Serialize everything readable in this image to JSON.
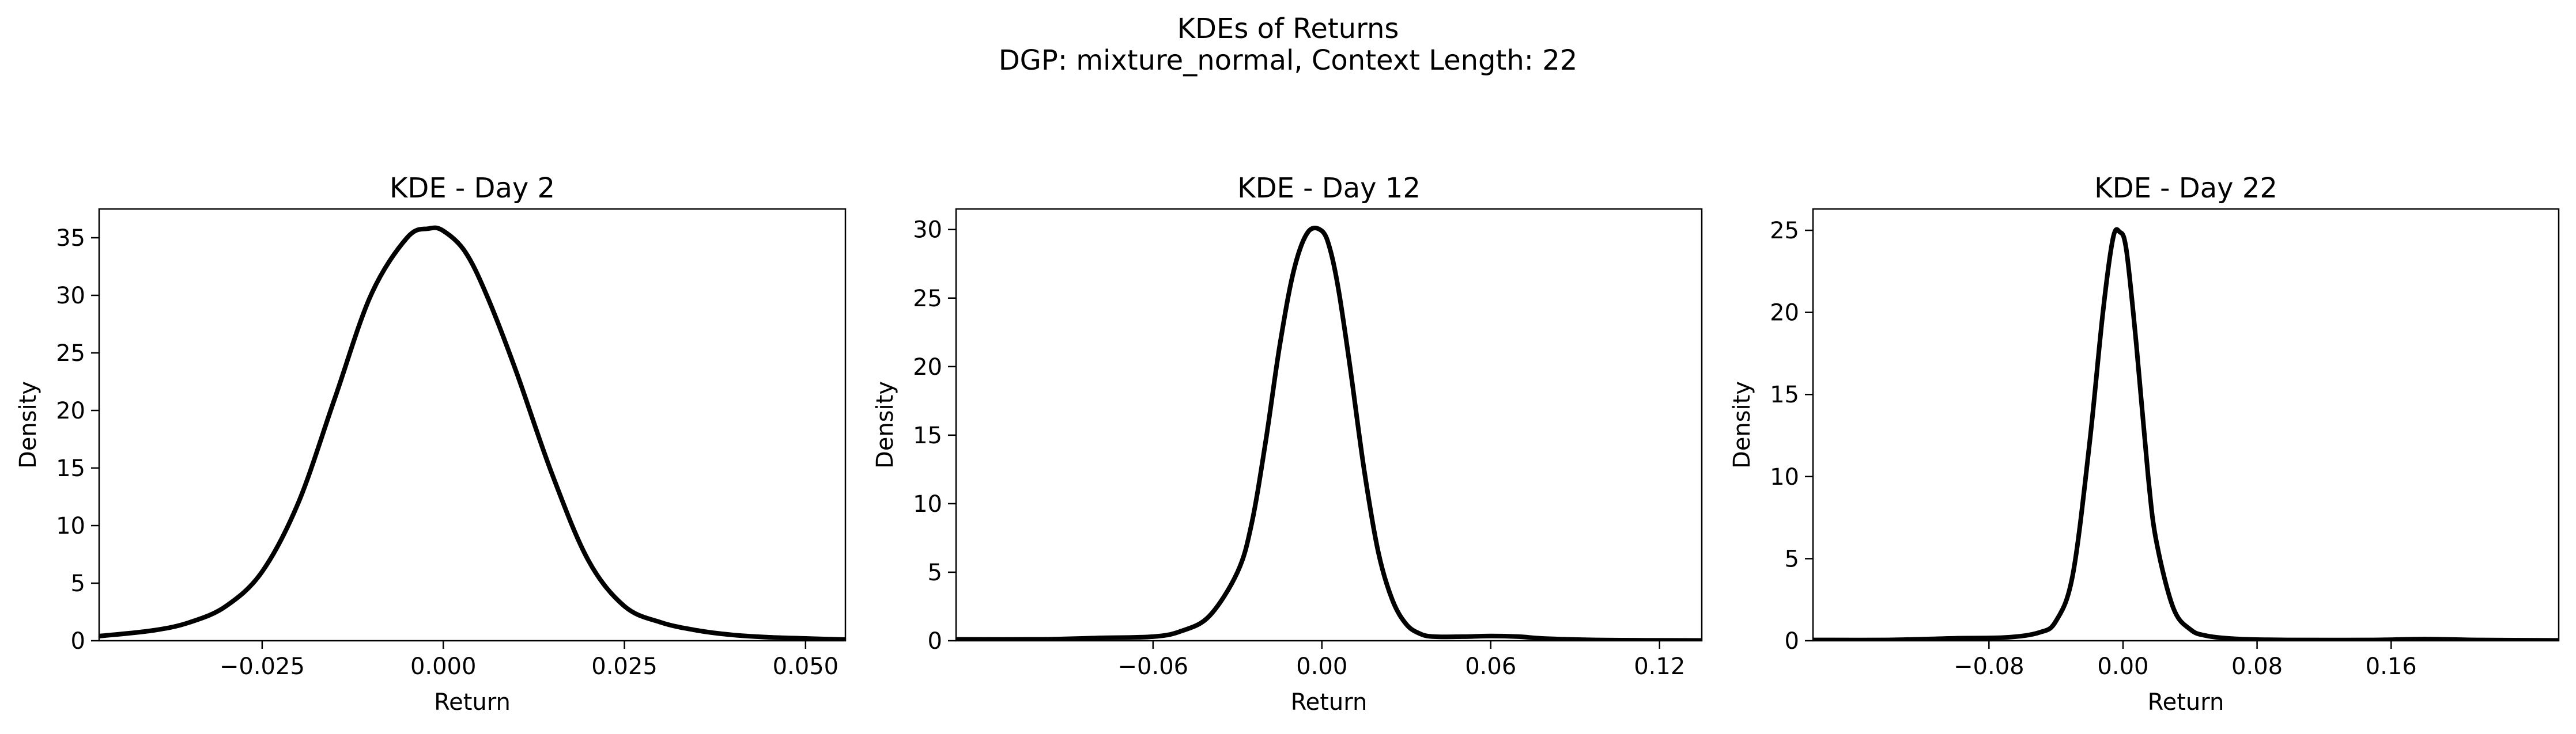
{
  "figure": {
    "title": "KDEs of Returns",
    "subtitle": "DGP: mixture_normal, Context Length: 22"
  },
  "chart_data": [
    {
      "type": "line",
      "title": "KDE - Day 2",
      "xlabel": "Return",
      "ylabel": "Density",
      "xlim": [
        -0.0475,
        0.0555
      ],
      "ylim": [
        0,
        37.5
      ],
      "xticks": [
        -0.025,
        0.0,
        0.025,
        0.05
      ],
      "xtick_labels": [
        "−0.025",
        "0.000",
        "0.025",
        "0.050"
      ],
      "yticks": [
        0,
        5,
        10,
        15,
        20,
        25,
        30,
        35
      ],
      "ytick_labels": [
        "0",
        "5",
        "10",
        "15",
        "20",
        "25",
        "30",
        "35"
      ],
      "grid": false,
      "line_color": "#000000",
      "series": [
        {
          "x": [
            -0.0475,
            -0.04,
            -0.035,
            -0.03,
            -0.025,
            -0.02,
            -0.015,
            -0.01,
            -0.005,
            -0.002,
            0.0,
            0.003,
            0.006,
            0.01,
            0.015,
            0.02,
            0.025,
            0.03,
            0.035,
            0.04,
            0.045,
            0.05,
            0.0555
          ],
          "y": [
            0.4,
            0.9,
            1.6,
            3.0,
            6.0,
            12.0,
            21.0,
            30.0,
            35.0,
            35.8,
            35.6,
            33.8,
            30.0,
            23.5,
            14.5,
            7.0,
            3.0,
            1.6,
            0.9,
            0.5,
            0.3,
            0.2,
            0.1
          ]
        }
      ]
    },
    {
      "type": "line",
      "title": "KDE - Day 12",
      "xlabel": "Return",
      "ylabel": "Density",
      "xlim": [
        -0.13,
        0.135
      ],
      "ylim": [
        0,
        31.5
      ],
      "xticks": [
        -0.06,
        0.0,
        0.06,
        0.12
      ],
      "xtick_labels": [
        "−0.06",
        "0.00",
        "0.06",
        "0.12"
      ],
      "yticks": [
        0,
        5,
        10,
        15,
        20,
        25,
        30
      ],
      "ytick_labels": [
        "0",
        "5",
        "10",
        "15",
        "20",
        "25",
        "30"
      ],
      "grid": false,
      "line_color": "#000000",
      "series": [
        {
          "x": [
            -0.13,
            -0.1,
            -0.08,
            -0.06,
            -0.05,
            -0.04,
            -0.03,
            -0.025,
            -0.02,
            -0.015,
            -0.01,
            -0.005,
            0.0,
            0.003,
            0.006,
            0.01,
            0.015,
            0.02,
            0.025,
            0.03,
            0.035,
            0.04,
            0.05,
            0.06,
            0.07,
            0.08,
            0.1,
            0.135
          ],
          "y": [
            0.1,
            0.1,
            0.2,
            0.3,
            0.7,
            1.8,
            5.0,
            8.5,
            14.5,
            21.5,
            27.0,
            29.8,
            29.9,
            28.5,
            25.5,
            20.0,
            12.5,
            6.5,
            3.0,
            1.2,
            0.5,
            0.3,
            0.3,
            0.35,
            0.3,
            0.15,
            0.05,
            0.02
          ]
        }
      ]
    },
    {
      "type": "line",
      "title": "KDE - Day 22",
      "xlabel": "Return",
      "ylabel": "Density",
      "xlim": [
        -0.185,
        0.26
      ],
      "ylim": [
        0,
        26.3
      ],
      "xticks": [
        -0.08,
        0.0,
        0.08,
        0.16
      ],
      "xtick_labels": [
        "−0.08",
        "0.00",
        "0.08",
        "0.16"
      ],
      "yticks": [
        0,
        5,
        10,
        15,
        20,
        25
      ],
      "ytick_labels": [
        "0",
        "5",
        "10",
        "15",
        "20",
        "25"
      ],
      "grid": false,
      "line_color": "#000000",
      "series": [
        {
          "x": [
            -0.185,
            -0.14,
            -0.1,
            -0.07,
            -0.05,
            -0.04,
            -0.03,
            -0.02,
            -0.012,
            -0.006,
            -0.002,
            0.002,
            0.008,
            0.015,
            0.02,
            0.03,
            0.04,
            0.05,
            0.07,
            0.1,
            0.15,
            0.18,
            0.21,
            0.26
          ],
          "y": [
            0.05,
            0.05,
            0.15,
            0.2,
            0.5,
            1.2,
            4.0,
            12.0,
            20.0,
            24.5,
            24.9,
            23.8,
            18.0,
            10.0,
            6.0,
            2.0,
            0.7,
            0.3,
            0.1,
            0.05,
            0.05,
            0.1,
            0.05,
            0.02
          ]
        }
      ]
    }
  ]
}
